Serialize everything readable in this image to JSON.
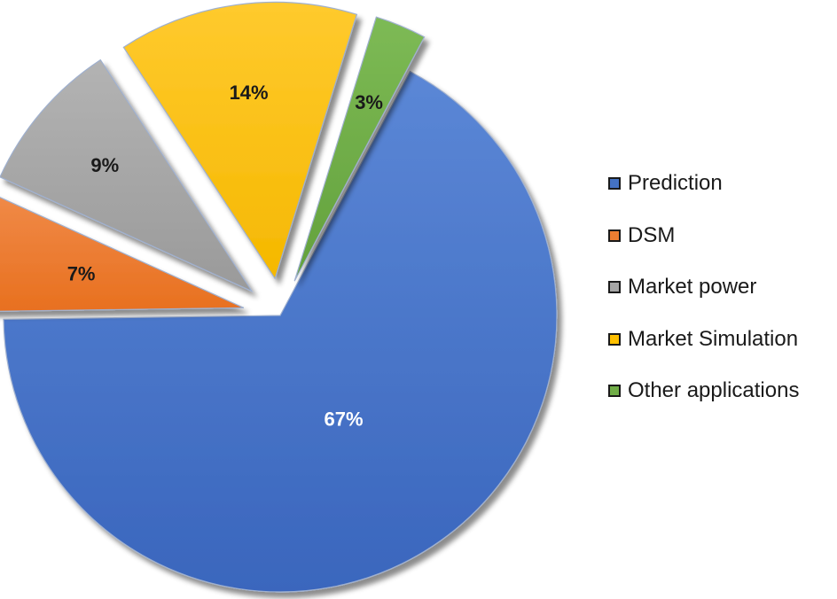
{
  "chart_data": {
    "type": "pie",
    "title": "",
    "categories": [
      "Prediction",
      "DSM",
      "Market power",
      "Market Simulation",
      "Other applications"
    ],
    "values": [
      67,
      7,
      9,
      14,
      3
    ],
    "labels": [
      "67%",
      "7%",
      "9%",
      "14%",
      "3%"
    ],
    "colors": [
      "#4472C4",
      "#ED7D31",
      "#A5A5A5",
      "#FFC000",
      "#70AD47"
    ],
    "label_colors": [
      "#ffffff",
      "#1a1a1a",
      "#1a1a1a",
      "#1a1a1a",
      "#1a1a1a"
    ],
    "exploded": true,
    "legend_position": "right"
  },
  "legend": {
    "items": [
      {
        "label": "Prediction",
        "color": "#4472C4"
      },
      {
        "label": "DSM",
        "color": "#ED7D31"
      },
      {
        "label": "Market power",
        "color": "#A5A5A5"
      },
      {
        "label": "Market Simulation",
        "color": "#FFC000"
      },
      {
        "label": "Other applications",
        "color": "#70AD47"
      }
    ]
  }
}
